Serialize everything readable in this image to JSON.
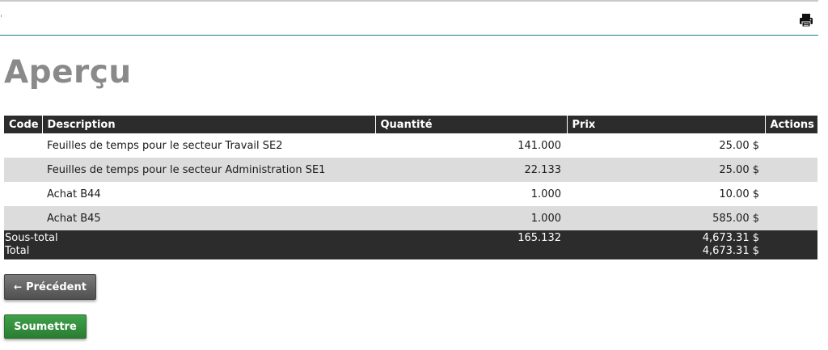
{
  "header": {
    "print_icon": "printer-icon"
  },
  "page": {
    "title": "Aperçu"
  },
  "table": {
    "columns": [
      "Code",
      "Description",
      "Quantité",
      "Prix",
      "Actions"
    ],
    "rows": [
      {
        "code": "",
        "description": "Feuilles de temps pour le secteur Travail SE2",
        "quantity": "141.000",
        "price": "25.00 $",
        "actions": ""
      },
      {
        "code": "",
        "description": "Feuilles de temps pour le secteur Administration SE1",
        "quantity": "22.133",
        "price": "25.00 $",
        "actions": ""
      },
      {
        "code": "",
        "description": "Achat B44",
        "quantity": "1.000",
        "price": "10.00 $",
        "actions": ""
      },
      {
        "code": "",
        "description": "Achat B45",
        "quantity": "1.000",
        "price": "585.00 $",
        "actions": ""
      }
    ],
    "summary": {
      "subtotal_label": "Sous-total",
      "total_label": "Total",
      "subtotal_quantity": "165.132",
      "subtotal_price": "4,673.31 $",
      "total_price": "4,673.31 $"
    }
  },
  "buttons": {
    "previous_arrow": "←",
    "previous_label": "Précédent",
    "submit_label": "Soumettre"
  },
  "colors": {
    "title": "#8a8a8a",
    "header_bg": "#2c2c2c",
    "stripe": "#dcdcdc",
    "accent_line": "#1f7d8c",
    "submit_green": "#2e8b3a"
  }
}
